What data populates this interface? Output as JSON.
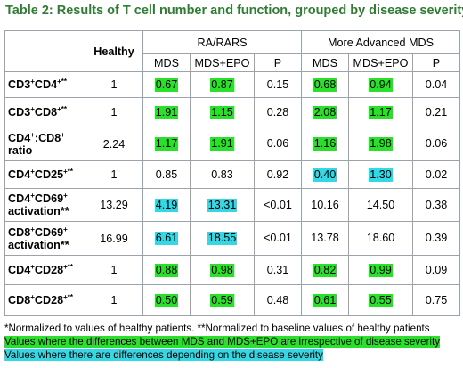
{
  "title": "Table 2: Results of T cell number and function, grouped by disease severity",
  "headers": {
    "healthy": "Healthy",
    "group1": "RA/RARS",
    "group2": "More Advanced MDS",
    "sub": [
      "MDS",
      "MDS+EPO",
      "P",
      "MDS",
      "MDS+EPO",
      "P"
    ]
  },
  "rows": [
    {
      "label": "CD3+CD4+**",
      "healthy": "1",
      "values": [
        "0.67",
        "0.87",
        "0.15",
        "0.68",
        "0.94",
        "0.04"
      ],
      "hl": [
        "g",
        "g",
        "",
        "g",
        "g",
        ""
      ]
    },
    {
      "label": "CD3+CD8+**",
      "healthy": "1",
      "values": [
        "1.91",
        "1.15",
        "0.28",
        "2.08",
        "1.17",
        "0.21"
      ],
      "hl": [
        "g",
        "g",
        "",
        "g",
        "g",
        ""
      ]
    },
    {
      "label": "CD4+:CD8+ ratio",
      "healthy": "2.24",
      "values": [
        "1.17",
        "1.91",
        "0.06",
        "1.16",
        "1.98",
        "0.06"
      ],
      "hl": [
        "g",
        "g",
        "",
        "g",
        "g",
        ""
      ]
    },
    {
      "label": "CD4+CD25+**",
      "healthy": "1",
      "values": [
        "0.85",
        "0.83",
        "0.92",
        "0.40",
        "1.30",
        "0.02"
      ],
      "hl": [
        "",
        "",
        "",
        "c",
        "c",
        ""
      ]
    },
    {
      "label": "CD4+CD69+ activation**",
      "healthy": "13.29",
      "values": [
        "4.19",
        "13.31",
        "<0.01",
        "10.16",
        "14.50",
        "0.38"
      ],
      "hl": [
        "c",
        "c",
        "",
        "",
        "",
        ""
      ]
    },
    {
      "label": "CD8+CD69+ activation**",
      "healthy": "16.99",
      "values": [
        "6.61",
        "18.55",
        "<0.01",
        "13.78",
        "18.60",
        "0.39"
      ],
      "hl": [
        "c",
        "c",
        "",
        "",
        "",
        ""
      ]
    },
    {
      "label": "CD4+CD28+**",
      "healthy": "1",
      "values": [
        "0.88",
        "0.98",
        "0.31",
        "0.82",
        "0.99",
        "0.09"
      ],
      "hl": [
        "g",
        "g",
        "",
        "g",
        "g",
        ""
      ]
    },
    {
      "label": "CD8+CD28+**",
      "healthy": "1",
      "values": [
        "0.50",
        "0.59",
        "0.48",
        "0.61",
        "0.55",
        "0.75"
      ],
      "hl": [
        "g",
        "g",
        "",
        "g",
        "g",
        ""
      ]
    }
  ],
  "notes": {
    "normalized": "*Normalized to values of healthy patients. **Normalized to baseline values of healthy patients",
    "green": "Values where the differences between MDS and MDS+EPO are irrespective of disease severity",
    "cyan": "Values where there are differences depending on the disease severity"
  },
  "colors": {
    "green_highlight": "#2be02b",
    "cyan_highlight": "#34d7e4",
    "title": "#2e7d32"
  }
}
